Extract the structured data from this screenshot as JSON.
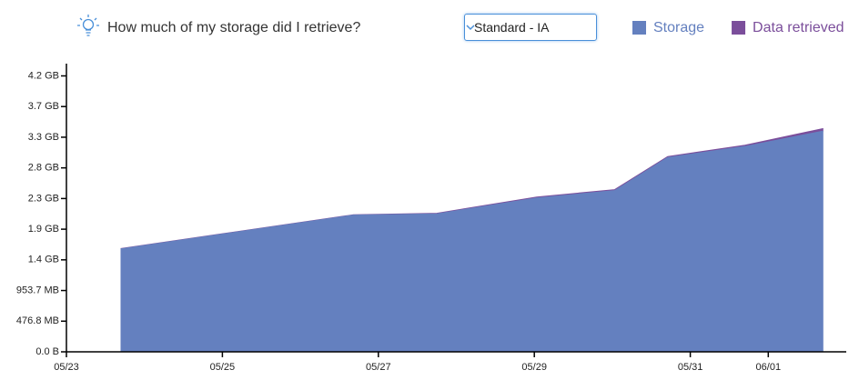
{
  "controls": {
    "storage_class": "Standard - IA"
  },
  "chart_data": {
    "type": "stacked-area",
    "title": "How much of my storage did I retrieve?",
    "x": [
      0.7,
      2.0,
      3.68,
      4.75,
      6.03,
      7.03,
      7.71,
      8.7,
      9.7
    ],
    "xlim": [
      0,
      10
    ],
    "xticks": [
      {
        "value": 0,
        "label": "05/23"
      },
      {
        "value": 2,
        "label": "05/25"
      },
      {
        "value": 4,
        "label": "05/27"
      },
      {
        "value": 6,
        "label": "05/29"
      },
      {
        "value": 8,
        "label": "05/31"
      },
      {
        "value": 9,
        "label": "06/01"
      }
    ],
    "ylim": [
      0,
      4700000000
    ],
    "yticks": [
      {
        "value": 0,
        "label": "0.0 B"
      },
      {
        "value": 500000000,
        "label": "476.8 MB"
      },
      {
        "value": 1000000000,
        "label": "953.7 MB"
      },
      {
        "value": 1500000000,
        "label": "1.4 GB"
      },
      {
        "value": 2000000000,
        "label": "1.9 GB"
      },
      {
        "value": 2500000000,
        "label": "2.3 GB"
      },
      {
        "value": 3000000000,
        "label": "2.8 GB"
      },
      {
        "value": 3500000000,
        "label": "3.3 GB"
      },
      {
        "value": 4000000000,
        "label": "3.7 GB"
      },
      {
        "value": 4500000000,
        "label": "4.2 GB"
      }
    ],
    "series": [
      {
        "name": "Storage",
        "color": "#6480bf",
        "values": [
          1680000000,
          1920000000,
          2230000000,
          2250000000,
          2510000000,
          2630000000,
          3170000000,
          3350000000,
          3600000000
        ]
      },
      {
        "name": "Data retrieved",
        "color": "#7b4e9b",
        "values": [
          5000000,
          5000000,
          5000000,
          10000000,
          15000000,
          15000000,
          15000000,
          20000000,
          40000000
        ]
      }
    ]
  }
}
